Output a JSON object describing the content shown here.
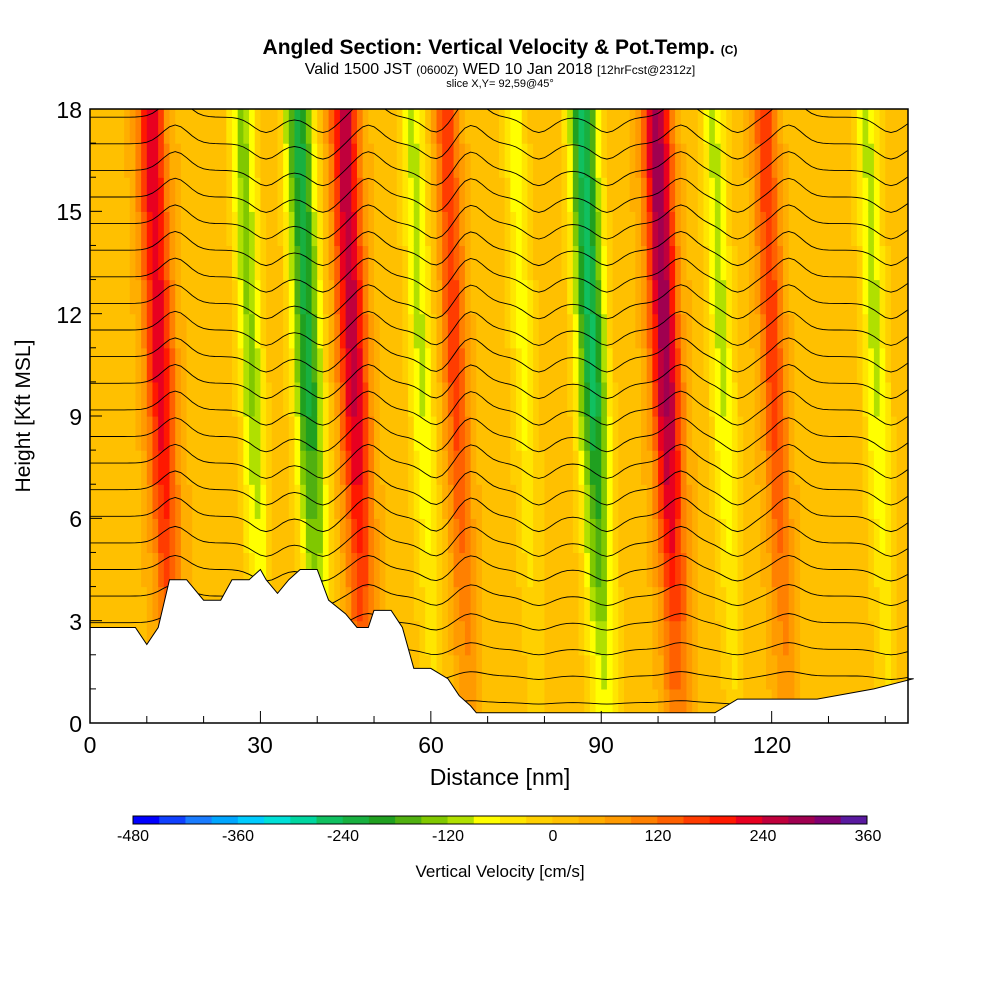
{
  "header": {
    "title": "Angled Section: Vertical Velocity & Pot.Temp.",
    "title_mark": "(C)",
    "valid_main": "Valid 1500 JST",
    "valid_zulu": "(0600Z)",
    "valid_date": "WED 10 Jan 2018",
    "valid_fcst": "[12hrFcst@2312z]",
    "slice": "slice X,Y= 92,59@45°"
  },
  "chart_data": {
    "type": "heatmap",
    "title": "Angled Section: Vertical Velocity & Pot.Temp. (C)",
    "xlabel": "Distance [nm]",
    "ylabel": "Height [Kft MSL]",
    "xlim": [
      0,
      144
    ],
    "ylim": [
      0,
      18
    ],
    "x_ticks": [
      "0",
      "30",
      "60",
      "90",
      "120"
    ],
    "y_ticks": [
      "0",
      "3",
      "6",
      "9",
      "12",
      "15",
      "18"
    ],
    "colorbar": {
      "label": "Vertical Velocity [cm/s]",
      "tick_labels": [
        "-480",
        "-360",
        "-240",
        "-120",
        "0",
        "120",
        "240",
        "360"
      ],
      "levels": [
        -480,
        -450,
        -420,
        -390,
        -360,
        -330,
        -300,
        -270,
        -240,
        -210,
        -180,
        -150,
        -120,
        -90,
        -60,
        -30,
        0,
        30,
        60,
        90,
        120,
        150,
        180,
        210,
        240,
        270,
        300,
        330,
        360
      ],
      "colors": [
        "#0000ff",
        "#1040ff",
        "#1a7cff",
        "#00a6ff",
        "#00ccff",
        "#00e0d8",
        "#00d6a0",
        "#10c060",
        "#18b040",
        "#20a020",
        "#50b010",
        "#80c800",
        "#b0e000",
        "#ffff00",
        "#ffe600",
        "#ffd000",
        "#ffc000",
        "#ffae00",
        "#ff9a00",
        "#ff8000",
        "#ff6000",
        "#ff3c00",
        "#ff1800",
        "#e80020",
        "#c0003c",
        "#a00050",
        "#800070",
        "#5a1aa0"
      ]
    },
    "velocity_features": [
      {
        "x": 14,
        "kind": "updraft",
        "peak_cm_s": 210
      },
      {
        "x": 30,
        "kind": "downdraft",
        "peak_cm_s": -150
      },
      {
        "x": 40,
        "kind": "downdraft",
        "peak_cm_s": -240
      },
      {
        "x": 48,
        "kind": "updraft",
        "peak_cm_s": 240
      },
      {
        "x": 60,
        "kind": "downdraft",
        "peak_cm_s": -120
      },
      {
        "x": 66,
        "kind": "updraft",
        "peak_cm_s": 150
      },
      {
        "x": 78,
        "kind": "downdraft",
        "peak_cm_s": -90
      },
      {
        "x": 90,
        "kind": "downdraft",
        "peak_cm_s": -270
      },
      {
        "x": 103,
        "kind": "updraft",
        "peak_cm_s": 270
      },
      {
        "x": 113,
        "kind": "downdraft",
        "peak_cm_s": -120
      },
      {
        "x": 122,
        "kind": "updraft",
        "peak_cm_s": 150
      },
      {
        "x": 140,
        "kind": "downdraft",
        "peak_cm_s": -120
      }
    ],
    "theta_contours_C": [
      10,
      11,
      12,
      13,
      14,
      15,
      16,
      17,
      18,
      19,
      20,
      21,
      22,
      23,
      24,
      25,
      26,
      27,
      28,
      29,
      30,
      31,
      32
    ],
    "terrain_kft": [
      [
        0,
        2.8
      ],
      [
        8,
        2.8
      ],
      [
        10,
        2.3
      ],
      [
        12,
        2.8
      ],
      [
        14,
        4.2
      ],
      [
        17,
        4.2
      ],
      [
        20,
        3.6
      ],
      [
        23,
        3.6
      ],
      [
        25,
        4.2
      ],
      [
        28,
        4.2
      ],
      [
        30,
        4.5
      ],
      [
        31,
        4.2
      ],
      [
        33,
        3.8
      ],
      [
        35,
        4.2
      ],
      [
        37,
        4.5
      ],
      [
        40,
        4.5
      ],
      [
        42,
        3.6
      ],
      [
        45,
        3.2
      ],
      [
        47,
        2.8
      ],
      [
        49,
        2.8
      ],
      [
        50,
        3.3
      ],
      [
        53,
        3.3
      ],
      [
        55,
        2.8
      ],
      [
        57,
        1.6
      ],
      [
        60,
        1.6
      ],
      [
        63,
        1.3
      ],
      [
        65,
        0.8
      ],
      [
        67,
        0.5
      ],
      [
        68,
        0.3
      ],
      [
        72,
        0.3
      ],
      [
        110,
        0.3
      ],
      [
        114,
        0.7
      ],
      [
        128,
        0.7
      ],
      [
        138,
        1.0
      ],
      [
        145,
        1.3
      ]
    ]
  }
}
